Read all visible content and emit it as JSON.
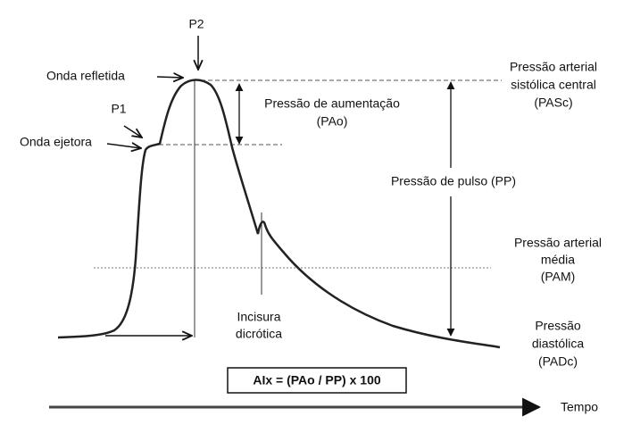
{
  "labels": {
    "p2": "P2",
    "onda_refletida": "Onda refletida",
    "p1": "P1",
    "onda_ejetora": "Onda ejetora",
    "pao": [
      "Pressão de aumentação",
      "(PAo)"
    ],
    "pasc": [
      "Pressão arterial",
      "sistólica central",
      "(PASc)"
    ],
    "pp": "Pressão de pulso (PP)",
    "pam": [
      "Pressão arterial",
      "média",
      "(PAM)"
    ],
    "incisura": [
      "Incisura",
      "dicrótica"
    ],
    "padc": [
      "Pressão",
      "diastólica",
      "(PADc)"
    ],
    "formula": "AIx = (PAo / PP) x 100",
    "tempo": "Tempo"
  }
}
